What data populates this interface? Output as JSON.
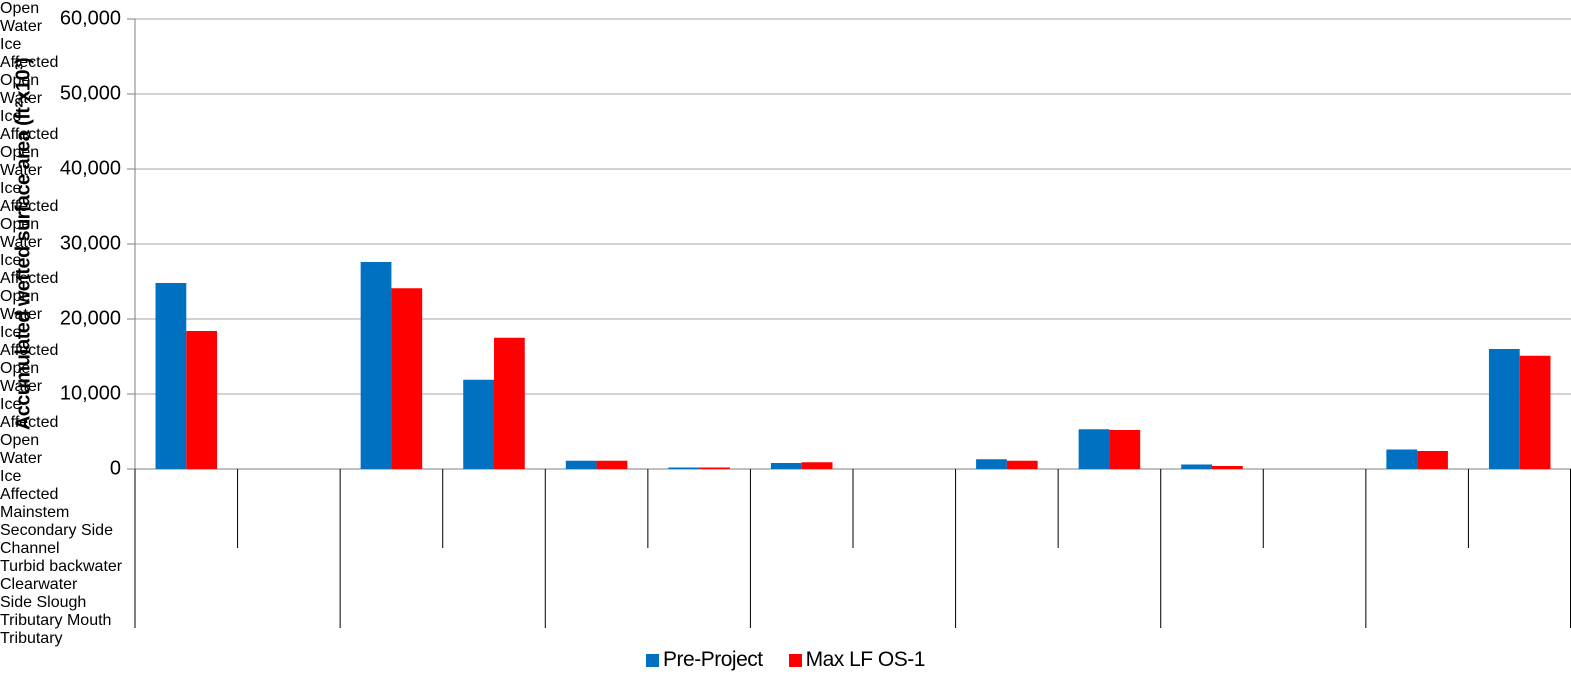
{
  "chart_data": {
    "type": "bar",
    "y_label": "Accumulated wetted surface area (ft²x10³)",
    "groups": [
      "Mainstem",
      "Secondary Side Channel",
      "Turbid backwater",
      "Clearwater",
      "Side Slough",
      "Tributary Mouth",
      "Tributary"
    ],
    "categories": [
      "Open Water",
      "Ice Affected",
      "Open Water",
      "Ice Affected",
      "Open Water",
      "Ice Affected",
      "Open Water",
      "Ice Affected",
      "Open Water",
      "Ice Affected",
      "Open Water",
      "Ice Affected",
      "Open Water",
      "Ice Affected"
    ],
    "series": [
      {
        "name": "Pre-Project",
        "color": "#0070c0",
        "values": [
          24800,
          0,
          27600,
          11900,
          1100,
          200,
          800,
          0,
          1300,
          5300,
          600,
          0,
          2600,
          16000
        ]
      },
      {
        "name": "Max LF OS-1",
        "color": "#ff0000",
        "values": [
          18400,
          0,
          24100,
          17500,
          1100,
          200,
          900,
          0,
          1100,
          5200,
          400,
          0,
          2400,
          15100
        ]
      }
    ],
    "ylim": [
      0,
      60000
    ],
    "yticks": [
      {
        "value": 0,
        "label": "0"
      },
      {
        "value": 10000,
        "label": "10,000"
      },
      {
        "value": 20000,
        "label": "20,000"
      },
      {
        "value": 30000,
        "label": "30,000"
      },
      {
        "value": 40000,
        "label": "40,000"
      },
      {
        "value": 50000,
        "label": "50,000"
      },
      {
        "value": 60000,
        "label": "60,000"
      }
    ],
    "grid": true,
    "legend": "bottom"
  }
}
